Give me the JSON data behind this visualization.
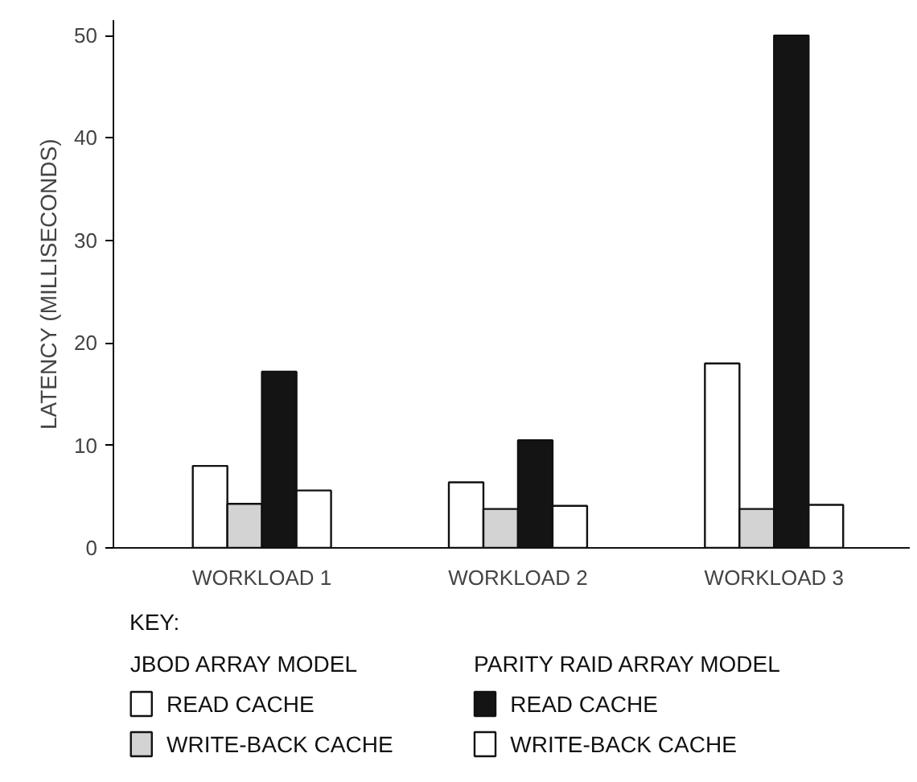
{
  "chart_data": {
    "type": "bar",
    "ylabel": "LATENCY (MILLISECONDS)",
    "categories": [
      "WORKLOAD 1",
      "WORKLOAD 2",
      "WORKLOAD 3"
    ],
    "series": [
      {
        "name": "READ CACHE",
        "color": "#ffffff",
        "values": [
          8,
          6.4,
          18
        ]
      },
      {
        "name": "WRITE-BACK CACHE",
        "color": "#d3d3d3",
        "values": [
          4.3,
          3.8,
          3.8
        ]
      },
      {
        "name": "READ CACHE",
        "color": "#141414",
        "values": [
          17.2,
          10.5,
          50
        ]
      },
      {
        "name": "WRITE-BACK CACHE",
        "color": "#ffffff",
        "values": [
          5.6,
          4.1,
          4.2
        ]
      }
    ],
    "legend_title": "KEY:",
    "annotations": [
      "JBOD ARRAY MODEL",
      "PARITY RAID ARRAY MODEL"
    ],
    "legend": "bottom",
    "ylim": [
      0,
      51.5
    ],
    "yticks": [
      0,
      10,
      20,
      30,
      40,
      50
    ],
    "grid": false
  }
}
